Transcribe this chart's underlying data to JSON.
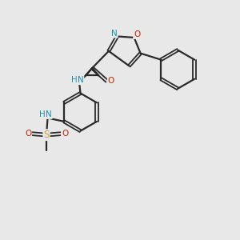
{
  "bg_color": "#e8e8e8",
  "bond_color": "#2a2a2a",
  "atom_colors": {
    "N": "#1e90b0",
    "O": "#cc2200",
    "S": "#ccaa00",
    "H": "#1e90b0"
  },
  "figsize": [
    3.0,
    3.0
  ],
  "dpi": 100
}
